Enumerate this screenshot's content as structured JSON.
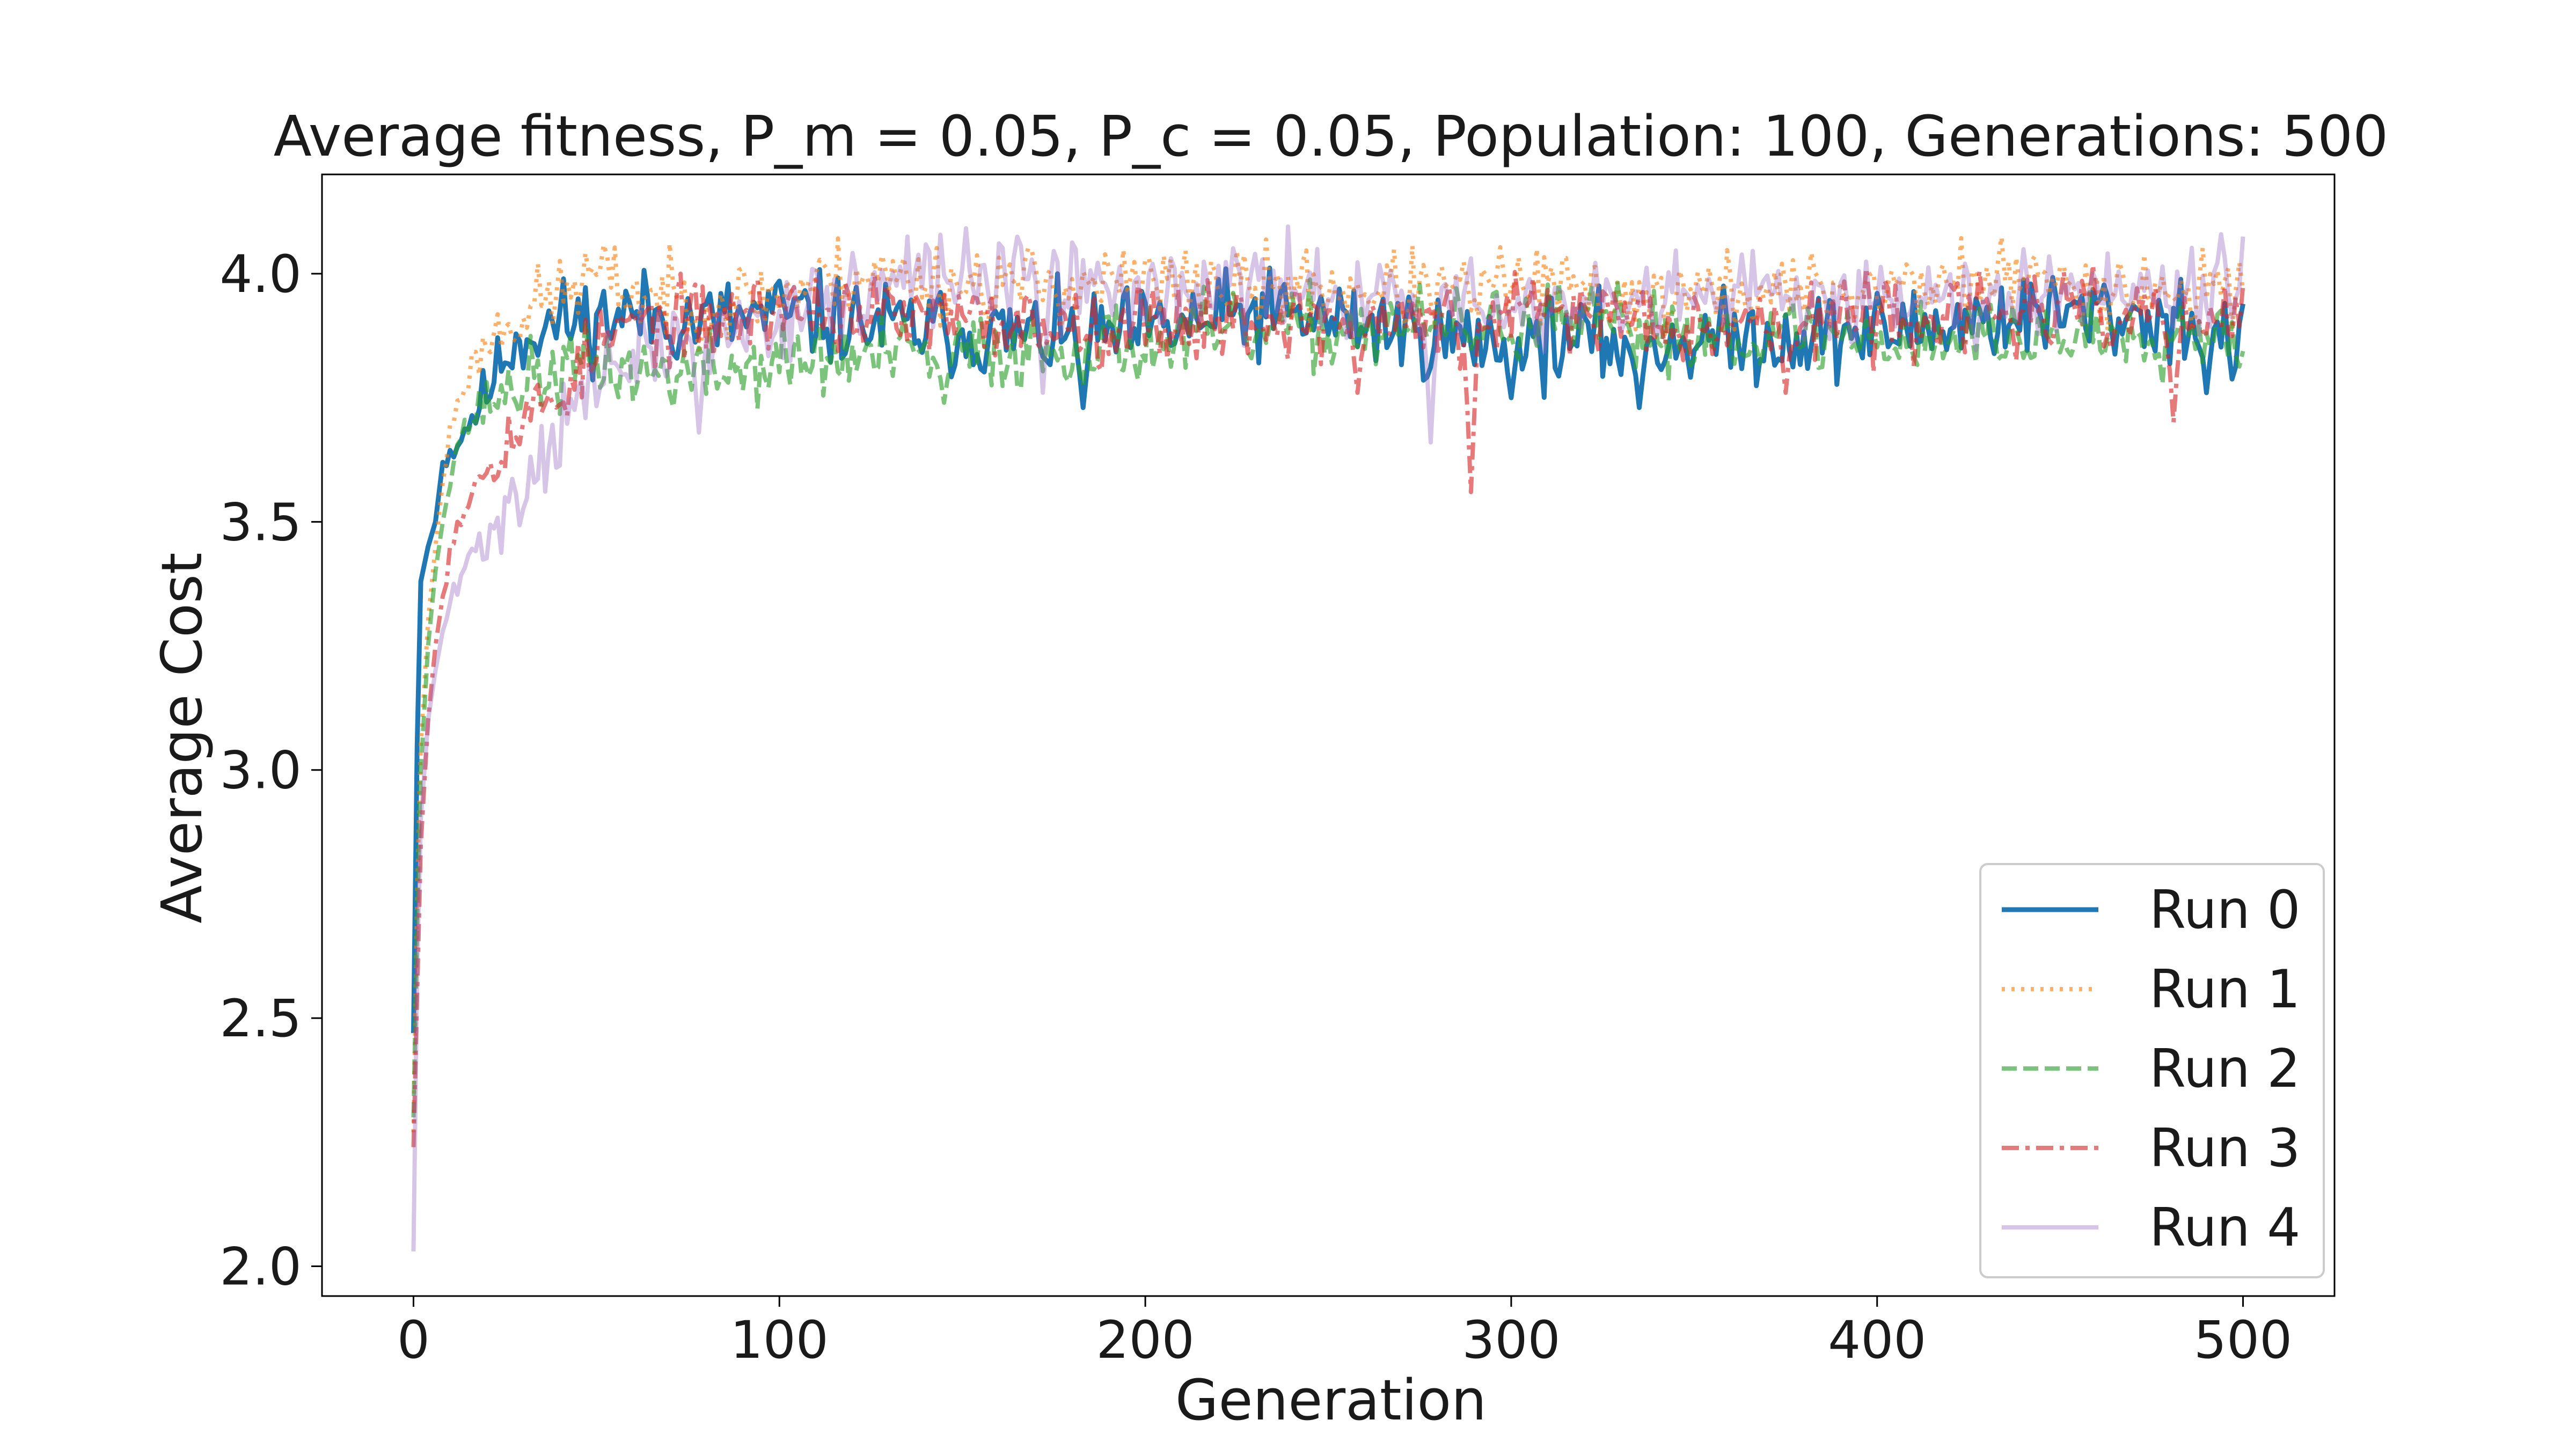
{
  "chart_data": {
    "type": "line",
    "title": "Average fitness, P_m = 0.05, P_c = 0.05, Population: 100, Generations: 500",
    "xlabel": "Generation",
    "ylabel": "Average Cost",
    "xlim": [
      -25,
      525
    ],
    "ylim": [
      1.94,
      4.2
    ],
    "xticks": [
      0,
      100,
      200,
      300,
      400,
      500
    ],
    "yticks": [
      2.0,
      2.5,
      3.0,
      3.5,
      4.0
    ],
    "xtick_labels": [
      "0",
      "100",
      "200",
      "300",
      "400",
      "500"
    ],
    "ytick_labels": [
      "2.0",
      "2.5",
      "3.0",
      "3.5",
      "4.0"
    ],
    "grid": false,
    "legend_position": "lower-right",
    "series": [
      {
        "name": "Run 0",
        "color": "#1f77b4",
        "style": "solid",
        "seed": 11,
        "noise": 0.045,
        "x": [
          0,
          1,
          2,
          4,
          6,
          8,
          10,
          12,
          15,
          20,
          25,
          30,
          40,
          50,
          60,
          80,
          100,
          120,
          150,
          180,
          200,
          230,
          260,
          290,
          300,
          330,
          360,
          400,
          430,
          460,
          490,
          500
        ],
        "values": [
          2.47,
          3.05,
          3.38,
          3.45,
          3.5,
          3.62,
          3.64,
          3.66,
          3.7,
          3.76,
          3.84,
          3.88,
          3.9,
          3.91,
          3.92,
          3.9,
          3.92,
          3.9,
          3.88,
          3.87,
          3.88,
          3.92,
          3.9,
          3.86,
          3.87,
          3.86,
          3.87,
          3.88,
          3.91,
          3.92,
          3.9,
          3.84
        ],
        "dips": [
          {
            "x": 183,
            "y": 3.73
          },
          {
            "x": 300,
            "y": 3.75
          },
          {
            "x": 335,
            "y": 3.73
          },
          {
            "x": 490,
            "y": 3.76
          }
        ]
      },
      {
        "name": "Run 1",
        "color": "#ff7f0e",
        "style": "dotted",
        "seed": 23,
        "noise": 0.04,
        "x": [
          0,
          1,
          2,
          4,
          6,
          8,
          10,
          12,
          15,
          20,
          25,
          30,
          40,
          50,
          60,
          80,
          100,
          120,
          150,
          180,
          200,
          230,
          260,
          290,
          300,
          330,
          360,
          400,
          430,
          460,
          490,
          500
        ],
        "values": [
          2.27,
          2.75,
          3.05,
          3.3,
          3.45,
          3.58,
          3.68,
          3.74,
          3.8,
          3.86,
          3.9,
          3.92,
          3.96,
          4.0,
          3.96,
          3.94,
          3.96,
          4.0,
          3.98,
          3.98,
          3.98,
          3.97,
          3.97,
          3.96,
          3.98,
          3.95,
          3.96,
          3.97,
          3.99,
          3.98,
          3.96,
          4.0
        ],
        "dips": []
      },
      {
        "name": "Run 2",
        "color": "#2ca02c",
        "style": "dashed",
        "seed": 37,
        "noise": 0.04,
        "x": [
          0,
          1,
          2,
          4,
          6,
          8,
          10,
          12,
          15,
          20,
          25,
          30,
          40,
          50,
          60,
          80,
          100,
          120,
          150,
          180,
          200,
          230,
          260,
          290,
          300,
          330,
          360,
          400,
          430,
          460,
          490,
          500
        ],
        "values": [
          2.3,
          2.7,
          3.0,
          3.25,
          3.4,
          3.5,
          3.6,
          3.66,
          3.7,
          3.74,
          3.76,
          3.78,
          3.8,
          3.82,
          3.8,
          3.8,
          3.82,
          3.83,
          3.84,
          3.85,
          3.86,
          3.88,
          3.89,
          3.89,
          3.9,
          3.89,
          3.88,
          3.87,
          3.87,
          3.88,
          3.89,
          3.89
        ],
        "dips": [
          {
            "x": 145,
            "y": 3.74
          }
        ]
      },
      {
        "name": "Run 3",
        "color": "#d62728",
        "style": "dashdot",
        "seed": 53,
        "noise": 0.04,
        "x": [
          0,
          1,
          2,
          4,
          6,
          8,
          10,
          12,
          15,
          20,
          25,
          30,
          40,
          50,
          60,
          80,
          100,
          120,
          150,
          180,
          200,
          230,
          260,
          290,
          300,
          330,
          360,
          400,
          430,
          460,
          490,
          500
        ],
        "values": [
          2.24,
          2.55,
          2.85,
          3.1,
          3.25,
          3.35,
          3.45,
          3.5,
          3.55,
          3.62,
          3.66,
          3.7,
          3.76,
          3.85,
          3.9,
          3.9,
          3.93,
          3.92,
          3.9,
          3.9,
          3.9,
          3.91,
          3.9,
          3.9,
          3.92,
          3.92,
          3.9,
          3.91,
          3.92,
          3.92,
          3.9,
          3.92
        ],
        "dips": [
          {
            "x": 289,
            "y": 3.56
          },
          {
            "x": 481,
            "y": 3.7
          },
          {
            "x": 258,
            "y": 3.76
          },
          {
            "x": 375,
            "y": 3.76
          }
        ]
      },
      {
        "name": "Run 4",
        "color": "#9467bd",
        "style": "solid",
        "seed": 71,
        "noise": 0.045,
        "x": [
          0,
          1,
          2,
          4,
          6,
          8,
          10,
          12,
          15,
          20,
          25,
          30,
          40,
          50,
          60,
          80,
          100,
          120,
          150,
          180,
          200,
          230,
          260,
          290,
          300,
          330,
          360,
          400,
          430,
          460,
          490,
          500
        ],
        "values": [
          2.03,
          2.6,
          2.9,
          3.1,
          3.2,
          3.28,
          3.33,
          3.37,
          3.42,
          3.47,
          3.52,
          3.57,
          3.7,
          3.78,
          3.83,
          3.87,
          3.92,
          3.96,
          4.0,
          3.98,
          3.96,
          3.97,
          3.96,
          3.93,
          3.93,
          3.92,
          3.95,
          3.96,
          3.96,
          3.98,
          3.98,
          4.04
        ],
        "dips": [
          {
            "x": 278,
            "y": 3.66
          },
          {
            "x": 78,
            "y": 3.68
          },
          {
            "x": 172,
            "y": 3.76
          }
        ]
      }
    ]
  }
}
